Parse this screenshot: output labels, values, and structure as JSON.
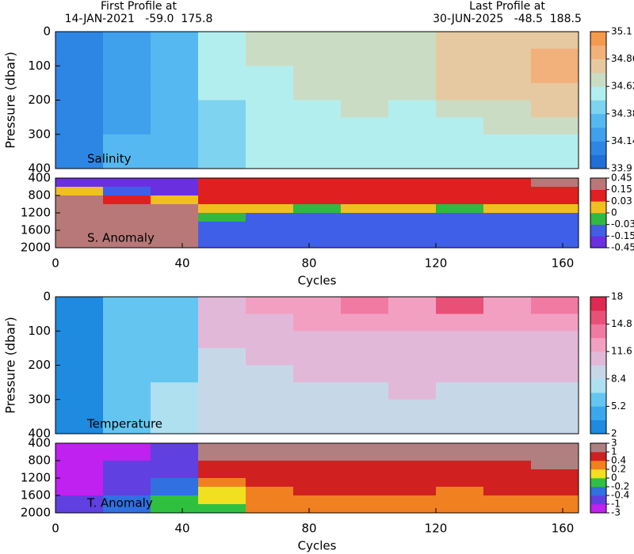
{
  "header": {
    "first_label": "First Profile at",
    "first_info": "14-JAN-2021   -59.0  175.8",
    "last_label": "Last Profile at",
    "last_info": "30-JUN-2025   -48.5  188.5"
  },
  "chart_data": [
    {
      "type": "heatmap",
      "label": "Salinity",
      "ylabel": "Pressure (dbar)",
      "xlim": [
        0,
        165
      ],
      "ylim": [
        0,
        400
      ],
      "yticks": [
        0,
        100,
        200,
        300,
        400
      ],
      "x_edges": [
        0,
        15,
        30,
        45,
        60,
        75,
        90,
        105,
        120,
        135,
        150,
        165
      ],
      "y_edges": [
        0,
        50,
        100,
        150,
        200,
        250,
        300,
        350,
        400
      ],
      "values": [
        [
          34.05,
          34.2,
          34.3,
          34.55,
          34.68,
          34.66,
          34.68,
          34.7,
          34.82,
          34.8,
          34.85
        ],
        [
          34.05,
          34.2,
          34.32,
          34.6,
          34.66,
          34.66,
          34.67,
          34.7,
          34.8,
          34.82,
          34.9
        ],
        [
          34.06,
          34.2,
          34.32,
          34.55,
          34.6,
          34.65,
          34.66,
          34.68,
          34.78,
          34.8,
          34.9
        ],
        [
          34.08,
          34.22,
          34.33,
          34.5,
          34.55,
          34.64,
          34.65,
          34.66,
          34.76,
          34.78,
          34.82
        ],
        [
          34.1,
          34.24,
          34.35,
          34.45,
          34.52,
          34.6,
          34.62,
          34.6,
          34.7,
          34.72,
          34.76
        ],
        [
          34.1,
          34.25,
          34.36,
          34.45,
          34.5,
          34.55,
          34.56,
          34.55,
          34.6,
          34.62,
          34.66
        ],
        [
          34.12,
          34.26,
          34.37,
          34.45,
          34.5,
          34.52,
          34.52,
          34.52,
          34.55,
          34.56,
          34.58
        ],
        [
          34.12,
          34.26,
          34.37,
          34.45,
          34.5,
          34.5,
          34.5,
          34.5,
          34.52,
          34.54,
          34.55
        ]
      ],
      "bounds": [
        33.9,
        34.02,
        34.14,
        34.26,
        34.38,
        34.5,
        34.62,
        34.74,
        34.86,
        34.98,
        35.1
      ],
      "colors": [
        "#1f6fd6",
        "#2e86e4",
        "#3fa0ec",
        "#55b8f0",
        "#7dd3f0",
        "#b3eeee",
        "#cbdcc4",
        "#e6c9a0",
        "#f2b07a",
        "#f49a4c"
      ],
      "cbar_ticks": [
        35.1,
        34.86,
        34.62,
        34.38,
        34.14,
        33.9
      ]
    },
    {
      "type": "heatmap",
      "label": "S. Anomaly",
      "xlabel": "Cycles",
      "xlim": [
        0,
        165
      ],
      "xticks": [
        0,
        40,
        80,
        120,
        160
      ],
      "ylim": [
        400,
        2000
      ],
      "yticks": [
        400,
        800,
        1200,
        1600,
        2000
      ],
      "x_edges": [
        0,
        15,
        30,
        45,
        60,
        75,
        90,
        105,
        120,
        135,
        150,
        165
      ],
      "y_edges": [
        400,
        600,
        800,
        1000,
        1200,
        1400,
        1600,
        1800,
        2000
      ],
      "values": [
        [
          -0.2,
          -0.2,
          -0.2,
          0.12,
          0.12,
          0.13,
          0.12,
          0.12,
          0.12,
          0.13,
          0.16
        ],
        [
          0.02,
          -0.1,
          -0.2,
          0.08,
          0.08,
          0.09,
          0.09,
          0.08,
          0.08,
          0.09,
          0.1
        ],
        [
          0.2,
          0.1,
          0.0,
          0.05,
          0.04,
          0.05,
          0.05,
          0.04,
          0.04,
          0.05,
          0.06
        ],
        [
          0.3,
          0.25,
          0.15,
          0.0,
          0.01,
          -0.01,
          0.0,
          0.0,
          -0.01,
          0.0,
          0.02
        ],
        [
          0.35,
          0.3,
          0.2,
          -0.02,
          -0.05,
          -0.05,
          -0.04,
          -0.05,
          -0.08,
          -0.05,
          -0.05
        ],
        [
          0.35,
          0.3,
          0.25,
          -0.05,
          -0.08,
          -0.1,
          -0.1,
          -0.1,
          -0.12,
          -0.1,
          -0.1
        ],
        [
          0.3,
          0.3,
          0.3,
          -0.08,
          -0.1,
          -0.12,
          -0.12,
          -0.12,
          -0.12,
          -0.12,
          -0.12
        ],
        [
          0.3,
          0.3,
          0.3,
          -0.1,
          -0.12,
          -0.12,
          -0.12,
          -0.12,
          -0.12,
          -0.12,
          -0.12
        ]
      ],
      "bounds": [
        -0.45,
        -0.15,
        -0.03,
        0,
        0.03,
        0.15,
        0.45
      ],
      "colors": [
        "#6a30e0",
        "#3f5fe8",
        "#30b840",
        "#f0c020",
        "#e02020",
        "#b87878"
      ],
      "cbar_ticks": [
        0.45,
        0.15,
        0.03,
        0,
        -0.03,
        -0.15,
        -0.45
      ]
    },
    {
      "type": "heatmap",
      "label": "Temperature",
      "ylabel": "Pressure (dbar)",
      "xlim": [
        0,
        165
      ],
      "ylim": [
        0,
        400
      ],
      "yticks": [
        0,
        100,
        200,
        300,
        400
      ],
      "x_edges": [
        0,
        15,
        30,
        45,
        60,
        75,
        90,
        105,
        120,
        135,
        150,
        165
      ],
      "y_edges": [
        0,
        50,
        100,
        150,
        200,
        250,
        300,
        350,
        400
      ],
      "values": [
        [
          3.5,
          5.5,
          6.5,
          11,
          12,
          12.5,
          14,
          13,
          15,
          13,
          14
        ],
        [
          3.4,
          5.5,
          6.5,
          10.5,
          11.5,
          12,
          12.5,
          12,
          13,
          12,
          13
        ],
        [
          3.3,
          5.4,
          6.6,
          10,
          10.5,
          10.8,
          11,
          10.8,
          11,
          11,
          11.5
        ],
        [
          3.2,
          5.3,
          6.6,
          9.5,
          10,
          10.3,
          10.5,
          10.5,
          10.6,
          10.5,
          10.5
        ],
        [
          3.1,
          5.3,
          6.7,
          9.2,
          9.7,
          10,
          10.2,
          10.2,
          10.2,
          10.1,
          10.2
        ],
        [
          3.0,
          5.3,
          6.8,
          9,
          9.4,
          9.8,
          9.9,
          10,
          9.8,
          9.7,
          9.8
        ],
        [
          3.0,
          5.3,
          6.8,
          8.8,
          9.2,
          9.5,
          9.6,
          9.6,
          9.5,
          9.4,
          9.5
        ],
        [
          2.9,
          5.3,
          6.8,
          8.7,
          9,
          9.2,
          9.3,
          9.4,
          9.3,
          9.2,
          9.3
        ]
      ],
      "bounds": [
        2,
        3.6,
        5.2,
        6.8,
        8.4,
        10,
        11.6,
        13.2,
        14.8,
        16.4,
        18
      ],
      "colors": [
        "#1e8ae0",
        "#3aa8ec",
        "#64c6f0",
        "#aee0f0",
        "#c6d8e8",
        "#e2b8d8",
        "#f2a0c2",
        "#f07aa2",
        "#e85078",
        "#e02850"
      ],
      "cbar_ticks": [
        18,
        14.8,
        11.6,
        8.4,
        5.2,
        2
      ]
    },
    {
      "type": "heatmap",
      "label": "T. Anomaly",
      "xlabel": "Cycles",
      "xlim": [
        0,
        165
      ],
      "xticks": [
        0,
        40,
        80,
        120,
        160
      ],
      "ylim": [
        400,
        2000
      ],
      "yticks": [
        400,
        800,
        1200,
        1600,
        2000
      ],
      "x_edges": [
        0,
        15,
        30,
        45,
        60,
        75,
        90,
        105,
        120,
        135,
        150,
        165
      ],
      "y_edges": [
        400,
        600,
        800,
        1000,
        1200,
        1400,
        1600,
        1800,
        2000
      ],
      "values": [
        [
          -2,
          -1.5,
          -0.8,
          1.5,
          1.5,
          1.5,
          1.5,
          1.5,
          1.5,
          1.5,
          1.5
        ],
        [
          -2,
          -1.2,
          -0.7,
          1.2,
          1.2,
          1.3,
          1.2,
          1.2,
          1.2,
          1.3,
          1.5
        ],
        [
          -2,
          -1,
          -0.6,
          0.8,
          0.9,
          0.9,
          0.9,
          0.8,
          0.8,
          0.9,
          1.2
        ],
        [
          -2,
          -0.9,
          -0.5,
          0.5,
          0.6,
          0.7,
          0.6,
          0.6,
          0.6,
          0.6,
          0.8
        ],
        [
          -2,
          -0.8,
          -0.4,
          0.2,
          0.5,
          0.5,
          0.5,
          0.5,
          0.5,
          0.5,
          0.6
        ],
        [
          -1.5,
          -0.6,
          -0.3,
          0.1,
          0.3,
          0.4,
          0.4,
          0.4,
          0.35,
          0.4,
          0.5
        ],
        [
          -1,
          -0.4,
          -0.2,
          0.0,
          0.25,
          0.3,
          0.3,
          0.3,
          0.25,
          0.3,
          0.3
        ],
        [
          -0.5,
          -0.3,
          -0.1,
          -0.1,
          0.2,
          0.25,
          0.25,
          0.25,
          0.2,
          0.2,
          0.25
        ]
      ],
      "bounds": [
        -3,
        -1,
        -0.4,
        -0.2,
        0,
        0.2,
        0.4,
        1,
        3
      ],
      "colors": [
        "#c020f0",
        "#6040e0",
        "#3070e0",
        "#30c040",
        "#f0e020",
        "#f08020",
        "#d02020",
        "#b08080"
      ],
      "cbar_ticks": [
        3,
        1,
        0.4,
        0.2,
        0,
        -0.2,
        -0.4,
        -1,
        -3
      ]
    }
  ]
}
